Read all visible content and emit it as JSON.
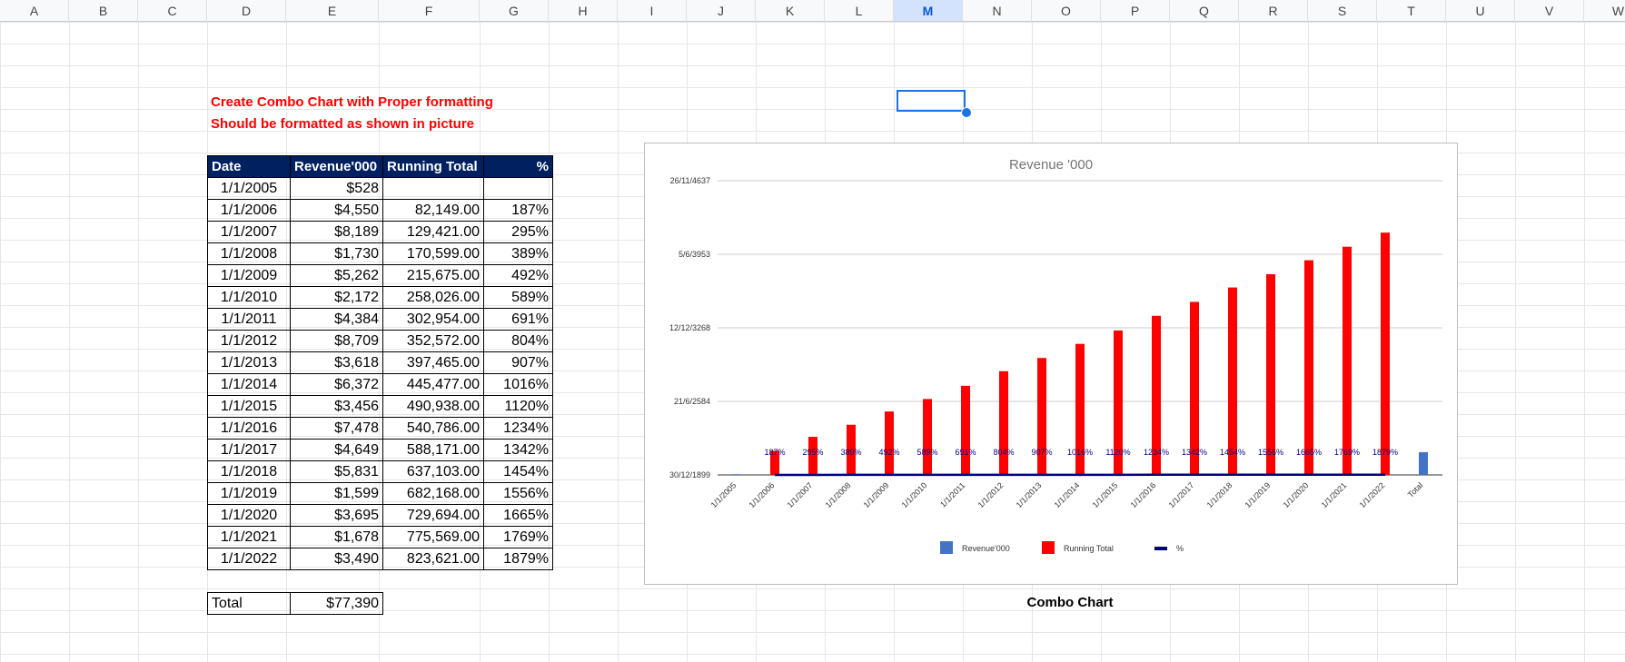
{
  "columns": [
    "A",
    "B",
    "C",
    "D",
    "E",
    "F",
    "G",
    "H",
    "I",
    "J",
    "K",
    "L",
    "M",
    "N",
    "O",
    "P",
    "Q",
    "R",
    "S",
    "T",
    "U",
    "V",
    "W"
  ],
  "selected_column": "M",
  "notes": {
    "line1": "Create Combo Chart with Proper formatting",
    "line2": "Should be formatted as shown in picture"
  },
  "table": {
    "headers": [
      "Date",
      "Revenue'000",
      "Running Total",
      "%"
    ],
    "rows": [
      {
        "date": "1/1/2005",
        "revenue": "$528",
        "running": "",
        "pct": ""
      },
      {
        "date": "1/1/2006",
        "revenue": "$4,550",
        "running": "82,149.00",
        "pct": "187%"
      },
      {
        "date": "1/1/2007",
        "revenue": "$8,189",
        "running": "129,421.00",
        "pct": "295%"
      },
      {
        "date": "1/1/2008",
        "revenue": "$1,730",
        "running": "170,599.00",
        "pct": "389%"
      },
      {
        "date": "1/1/2009",
        "revenue": "$5,262",
        "running": "215,675.00",
        "pct": "492%"
      },
      {
        "date": "1/1/2010",
        "revenue": "$2,172",
        "running": "258,026.00",
        "pct": "589%"
      },
      {
        "date": "1/1/2011",
        "revenue": "$4,384",
        "running": "302,954.00",
        "pct": "691%"
      },
      {
        "date": "1/1/2012",
        "revenue": "$8,709",
        "running": "352,572.00",
        "pct": "804%"
      },
      {
        "date": "1/1/2013",
        "revenue": "$3,618",
        "running": "397,465.00",
        "pct": "907%"
      },
      {
        "date": "1/1/2014",
        "revenue": "$6,372",
        "running": "445,477.00",
        "pct": "1016%"
      },
      {
        "date": "1/1/2015",
        "revenue": "$3,456",
        "running": "490,938.00",
        "pct": "1120%"
      },
      {
        "date": "1/1/2016",
        "revenue": "$7,478",
        "running": "540,786.00",
        "pct": "1234%"
      },
      {
        "date": "1/1/2017",
        "revenue": "$4,649",
        "running": "588,171.00",
        "pct": "1342%"
      },
      {
        "date": "1/1/2018",
        "revenue": "$5,831",
        "running": "637,103.00",
        "pct": "1454%"
      },
      {
        "date": "1/1/2019",
        "revenue": "$1,599",
        "running": "682,168.00",
        "pct": "1556%"
      },
      {
        "date": "1/1/2020",
        "revenue": "$3,695",
        "running": "729,694.00",
        "pct": "1665%"
      },
      {
        "date": "1/1/2021",
        "revenue": "$1,678",
        "running": "775,569.00",
        "pct": "1769%"
      },
      {
        "date": "1/1/2022",
        "revenue": "$3,490",
        "running": "823,621.00",
        "pct": "1879%"
      }
    ],
    "total_label": "Total",
    "total_value": "$77,390"
  },
  "caption": "Combo Chart",
  "chart_data": {
    "type": "bar",
    "title": "Revenue '000",
    "categories": [
      "1/1/2005",
      "1/1/2006",
      "1/1/2007",
      "1/1/2008",
      "1/1/2009",
      "1/1/2010",
      "1/1/2011",
      "1/1/2012",
      "1/1/2013",
      "1/1/2014",
      "1/1/2015",
      "1/1/2016",
      "1/1/2017",
      "1/1/2018",
      "1/1/2019",
      "1/1/2020",
      "1/1/2021",
      "1/1/2022",
      "Total"
    ],
    "y_tick_labels": [
      "30/12/1899",
      "21/6/2584",
      "12/12/3268",
      "5/6/3953",
      "26/11/4637"
    ],
    "ylim": [
      0,
      1000000
    ],
    "y_ticks": [
      0,
      250000,
      500000,
      750000,
      1000000
    ],
    "grid": true,
    "legend_position": "bottom",
    "series": [
      {
        "name": "Revenue'000",
        "kind": "bar",
        "color": "#4472c4",
        "values": [
          528,
          4550,
          8189,
          1730,
          5262,
          2172,
          4384,
          8709,
          3618,
          6372,
          3456,
          7478,
          4649,
          5831,
          1599,
          3695,
          1678,
          3490,
          77390
        ]
      },
      {
        "name": "Running Total",
        "kind": "bar",
        "color": "#ff0000",
        "values": [
          null,
          82149,
          129421,
          170599,
          215675,
          258026,
          302954,
          352572,
          397465,
          445477,
          490938,
          540786,
          588171,
          637103,
          682168,
          729694,
          775569,
          823621,
          null
        ]
      },
      {
        "name": "%",
        "kind": "line",
        "color": "#000080",
        "values": [
          null,
          1.87,
          2.95,
          3.89,
          4.92,
          5.89,
          6.91,
          8.04,
          9.07,
          10.16,
          11.2,
          12.34,
          13.42,
          14.54,
          15.56,
          16.65,
          17.69,
          18.79,
          null
        ],
        "labels": [
          "",
          "187%",
          "295%",
          "389%",
          "492%",
          "589%",
          "691%",
          "804%",
          "907%",
          "1016%",
          "1120%",
          "1234%",
          "1342%",
          "1454%",
          "1556%",
          "1665%",
          "1769%",
          "1879%",
          ""
        ]
      }
    ]
  }
}
